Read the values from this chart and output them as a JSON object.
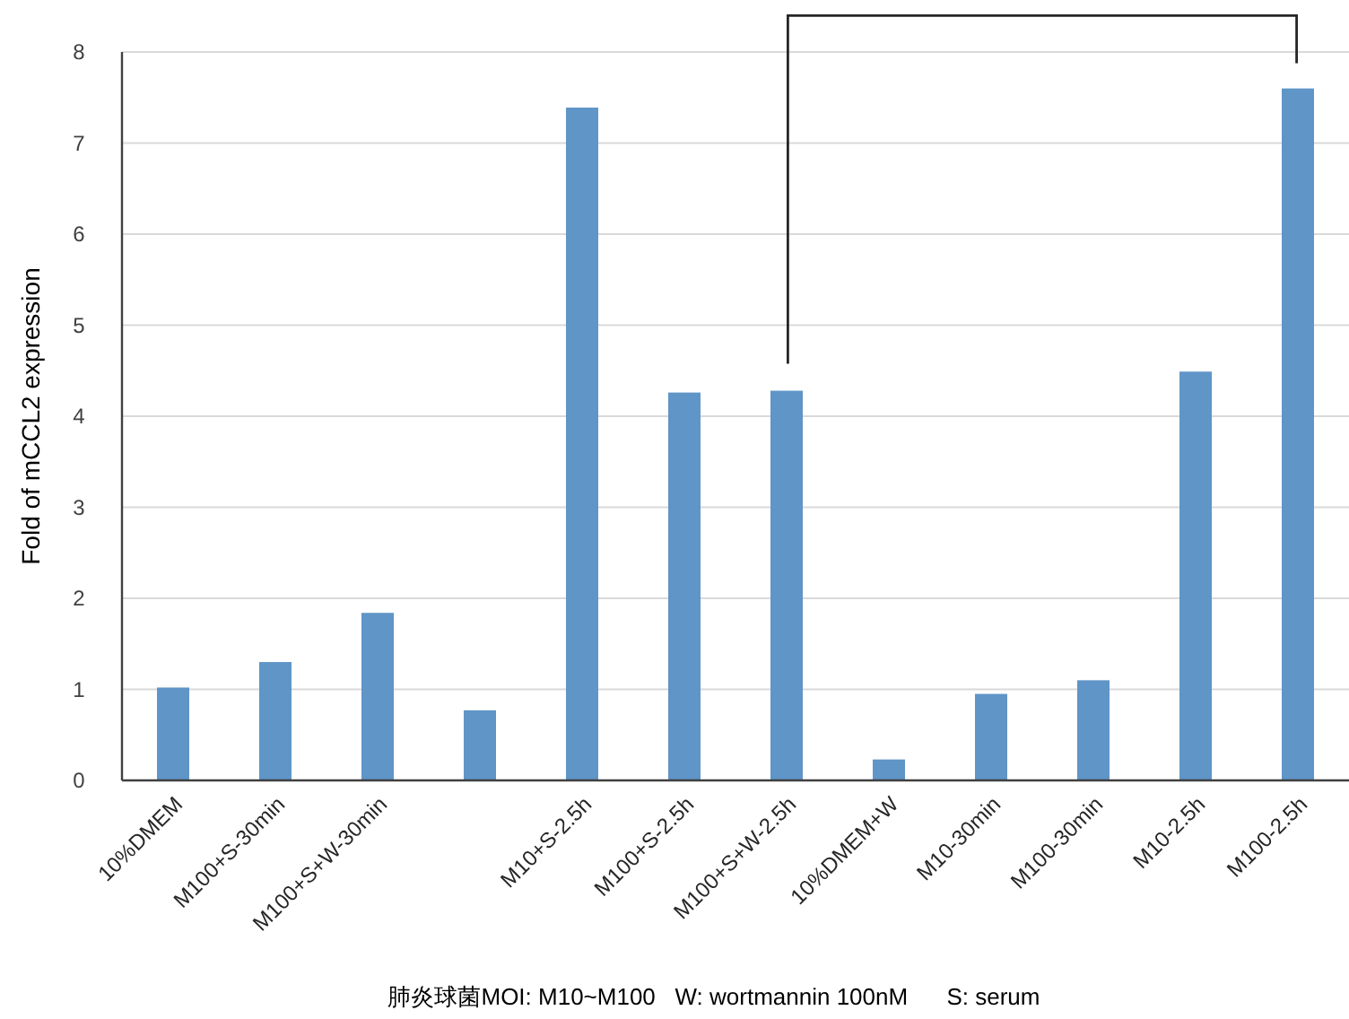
{
  "chart_data": {
    "type": "bar",
    "ylabel": "Fold of mCCL2 expression",
    "xlabel": "肺炎球菌MOI: M10~M100   W: wortmannin 100nM      S: serum",
    "categories": [
      "10%DMEM",
      "M100+S-30min",
      "M100+S+W-30min",
      null,
      "M10+S-2.5h",
      "M100+S-2.5h",
      "M100+S+W-2.5h",
      "10%DMEM+W",
      "M10-30min",
      "M100-30min",
      "M10-2.5h",
      "M100-2.5h"
    ],
    "values": [
      1.02,
      1.3,
      1.84,
      0.77,
      7.39,
      4.26,
      4.28,
      0.23,
      0.95,
      1.1,
      4.49,
      7.6
    ],
    "color": "#5f95c7",
    "ylim": [
      0,
      8
    ],
    "yticks": [
      0,
      1,
      2,
      3,
      4,
      5,
      6,
      7,
      8
    ],
    "grid": "y"
  }
}
